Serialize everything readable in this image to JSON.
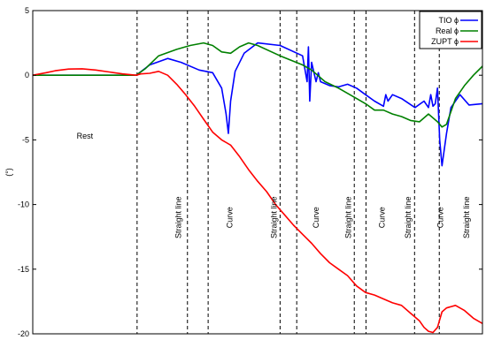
{
  "chart_data": {
    "type": "line",
    "title": "",
    "xlabel": "",
    "ylabel": "(°)",
    "xlim": [
      0,
      100
    ],
    "ylim": [
      -20,
      5
    ],
    "yticks": [
      5,
      0,
      -5,
      -10,
      -15,
      -20
    ],
    "grid": false,
    "legend": {
      "placement": "top-right"
    },
    "region_boundaries": [
      23.2,
      34.4,
      39.0,
      55.0,
      58.7,
      71.5,
      74.1,
      84.9,
      90.4
    ],
    "regions": [
      {
        "label": "Rest",
        "x": 11.6,
        "y": -4.9,
        "rotated": false
      },
      {
        "label": "Straight line",
        "x": 33.0,
        "y": -11,
        "rotated": true
      },
      {
        "label": "Curve",
        "x": 44.4,
        "y": -11,
        "rotated": true
      },
      {
        "label": "Straight line",
        "x": 54.2,
        "y": -11,
        "rotated": true
      },
      {
        "label": "Curve",
        "x": 63.6,
        "y": -11,
        "rotated": true
      },
      {
        "label": "Straight line",
        "x": 70.8,
        "y": -11,
        "rotated": true
      },
      {
        "label": "Curve",
        "x": 78.2,
        "y": -11,
        "rotated": true
      },
      {
        "label": "Straight line",
        "x": 84.1,
        "y": -11,
        "rotated": true
      },
      {
        "label": "Curve",
        "x": 91.2,
        "y": -11,
        "rotated": true
      },
      {
        "label": "Straight line",
        "x": 97.0,
        "y": -11,
        "rotated": true
      }
    ],
    "series": [
      {
        "name": "TIO ϕ",
        "color": "#0000ff",
        "x": [
          0,
          23,
          26,
          30,
          33,
          37,
          40,
          42,
          43,
          43.5,
          44,
          45,
          47,
          50,
          55,
          60,
          61,
          61.3,
          61.6,
          62,
          63,
          63.5,
          64,
          66,
          68,
          70,
          72,
          74,
          76,
          78,
          78.5,
          79,
          80,
          82,
          85,
          87,
          88,
          88.5,
          89,
          89.5,
          90,
          90.5,
          91,
          92,
          93,
          95,
          97,
          100
        ],
        "y": [
          0,
          0,
          0.8,
          1.3,
          1.0,
          0.4,
          0.2,
          -1.0,
          -3.0,
          -4.5,
          -2.0,
          0.3,
          1.7,
          2.5,
          2.3,
          1.5,
          -0.5,
          2.2,
          -2.0,
          1.0,
          -0.5,
          0.2,
          -0.5,
          -0.8,
          -0.9,
          -0.7,
          -1.0,
          -1.5,
          -2.0,
          -2.4,
          -1.5,
          -2.0,
          -1.5,
          -1.8,
          -2.5,
          -2.0,
          -2.5,
          -1.5,
          -2.4,
          -2.2,
          -1.0,
          -5.0,
          -7.0,
          -4.5,
          -2.5,
          -1.5,
          -2.3,
          -2.2
        ]
      },
      {
        "name": "Real ϕ",
        "color": "#008000",
        "x": [
          0,
          23,
          25,
          28,
          32,
          35,
          38,
          40,
          42,
          44,
          46,
          48,
          50,
          55,
          60,
          62,
          65,
          68,
          70,
          72,
          74,
          76,
          78,
          80,
          82,
          84,
          86,
          88,
          90,
          91,
          92,
          94,
          96,
          98,
          100
        ],
        "y": [
          0,
          0,
          0.5,
          1.5,
          2.0,
          2.3,
          2.5,
          2.3,
          1.8,
          1.7,
          2.2,
          2.5,
          2.3,
          1.5,
          0.8,
          0.4,
          -0.5,
          -1.0,
          -1.4,
          -1.8,
          -2.2,
          -2.7,
          -2.7,
          -3.0,
          -3.2,
          -3.5,
          -3.6,
          -3.0,
          -3.6,
          -4.0,
          -3.8,
          -1.8,
          -0.8,
          0.0,
          0.7
        ]
      },
      {
        "name": "ZUPT ϕ",
        "color": "#ff0000",
        "x": [
          0,
          3,
          5,
          8,
          11,
          14,
          17,
          20,
          23,
          24,
          26,
          28,
          30,
          32,
          34,
          36,
          38,
          40,
          42,
          44,
          46,
          48,
          50,
          52,
          54,
          56,
          58,
          60,
          62,
          64,
          66,
          68,
          70,
          72,
          74,
          76,
          78,
          80,
          82,
          84,
          86,
          87,
          88,
          89,
          90,
          91,
          92,
          94,
          96,
          98,
          100
        ],
        "y": [
          0,
          0.2,
          0.35,
          0.48,
          0.5,
          0.4,
          0.25,
          0.1,
          0,
          0.1,
          0.15,
          0.3,
          0.0,
          -0.7,
          -1.5,
          -2.4,
          -3.4,
          -4.4,
          -5.0,
          -5.4,
          -6.3,
          -7.3,
          -8.2,
          -9.0,
          -10.0,
          -10.8,
          -11.6,
          -12.3,
          -13.0,
          -13.8,
          -14.5,
          -15.0,
          -15.5,
          -16.3,
          -16.8,
          -17.0,
          -17.3,
          -17.6,
          -17.8,
          -18.4,
          -19.0,
          -19.5,
          -19.8,
          -19.9,
          -19.5,
          -18.3,
          -18.0,
          -17.8,
          -18.2,
          -18.8,
          -19.2
        ]
      }
    ]
  }
}
